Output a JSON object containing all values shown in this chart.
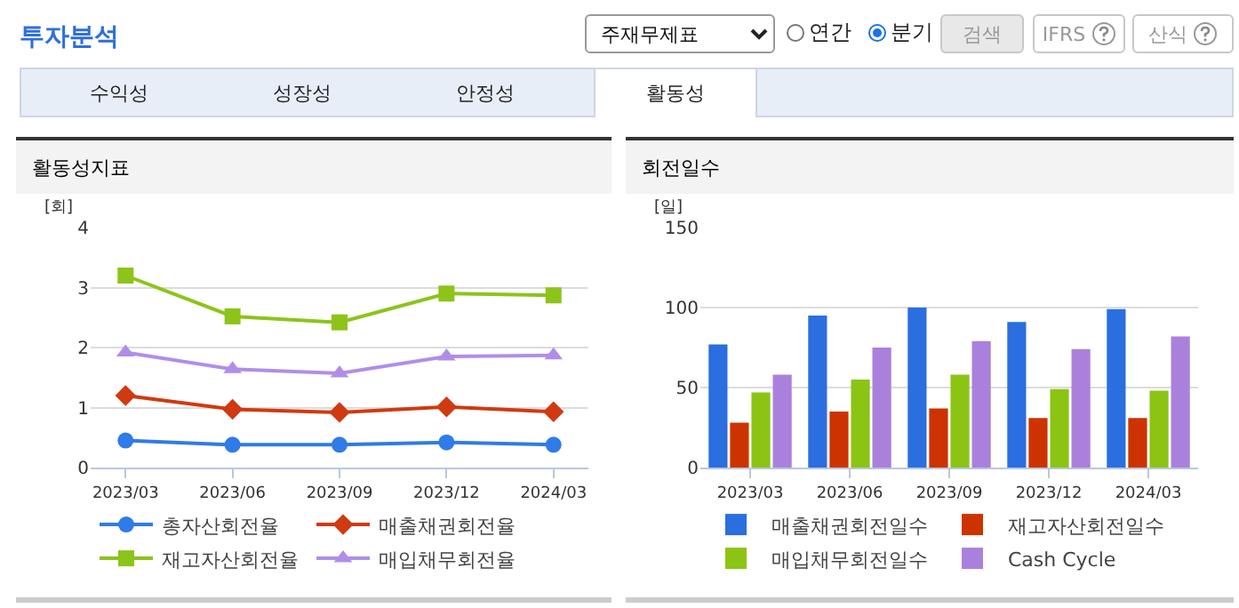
{
  "chart_data": [
    {
      "type": "other",
      "title": "투자분석",
      "annotations": [
        "주재무제표",
        "연간",
        "분기",
        "검색",
        "IFRS",
        "산식",
        "수익성",
        "성장성",
        "안정성",
        "활동성"
      ]
    },
    {
      "type": "line",
      "title": "활동성지표",
      "ylabel": "[회]",
      "categories": [
        "2023/03",
        "2023/06",
        "2023/09",
        "2023/12",
        "2024/03"
      ],
      "ylim": [
        0,
        4
      ],
      "yticks": [
        0,
        1,
        2,
        3,
        4
      ],
      "grid": "y",
      "legend": "bottom",
      "series": [
        {
          "name": "총자산회전율",
          "color": "#2f7be8",
          "marker": "circle",
          "values": [
            0.45,
            0.38,
            0.38,
            0.42,
            0.38
          ]
        },
        {
          "name": "매출채권회전율",
          "color": "#d03a10",
          "marker": "diamond",
          "values": [
            1.2,
            0.97,
            0.92,
            1.01,
            0.93
          ]
        },
        {
          "name": "재고자산회전율",
          "color": "#8cc41a",
          "marker": "square",
          "values": [
            3.2,
            2.52,
            2.42,
            2.9,
            2.87
          ]
        },
        {
          "name": "매입채무회전율",
          "color": "#b08ee8",
          "marker": "triangle",
          "values": [
            1.92,
            1.64,
            1.57,
            1.85,
            1.87
          ]
        }
      ]
    },
    {
      "type": "bar",
      "title": "회전일수",
      "ylabel": "[일]",
      "categories": [
        "2023/03",
        "2023/06",
        "2023/09",
        "2023/12",
        "2024/03"
      ],
      "ylim": [
        0,
        150
      ],
      "yticks": [
        0,
        50,
        100,
        150
      ],
      "grid": "y",
      "legend": "bottom",
      "series": [
        {
          "name": "매출채권회전일수",
          "color": "#2a6ee0",
          "values": [
            77,
            95,
            100,
            91,
            99
          ]
        },
        {
          "name": "재고자산회전일수",
          "color": "#cc3300",
          "values": [
            28,
            35,
            37,
            31,
            31
          ]
        },
        {
          "name": "매입채무회전일수",
          "color": "#8cc414",
          "values": [
            47,
            55,
            58,
            49,
            48
          ]
        },
        {
          "name": "Cash Cycle",
          "color": "#aa80dd",
          "values": [
            58,
            75,
            79,
            74,
            82
          ]
        }
      ]
    }
  ]
}
